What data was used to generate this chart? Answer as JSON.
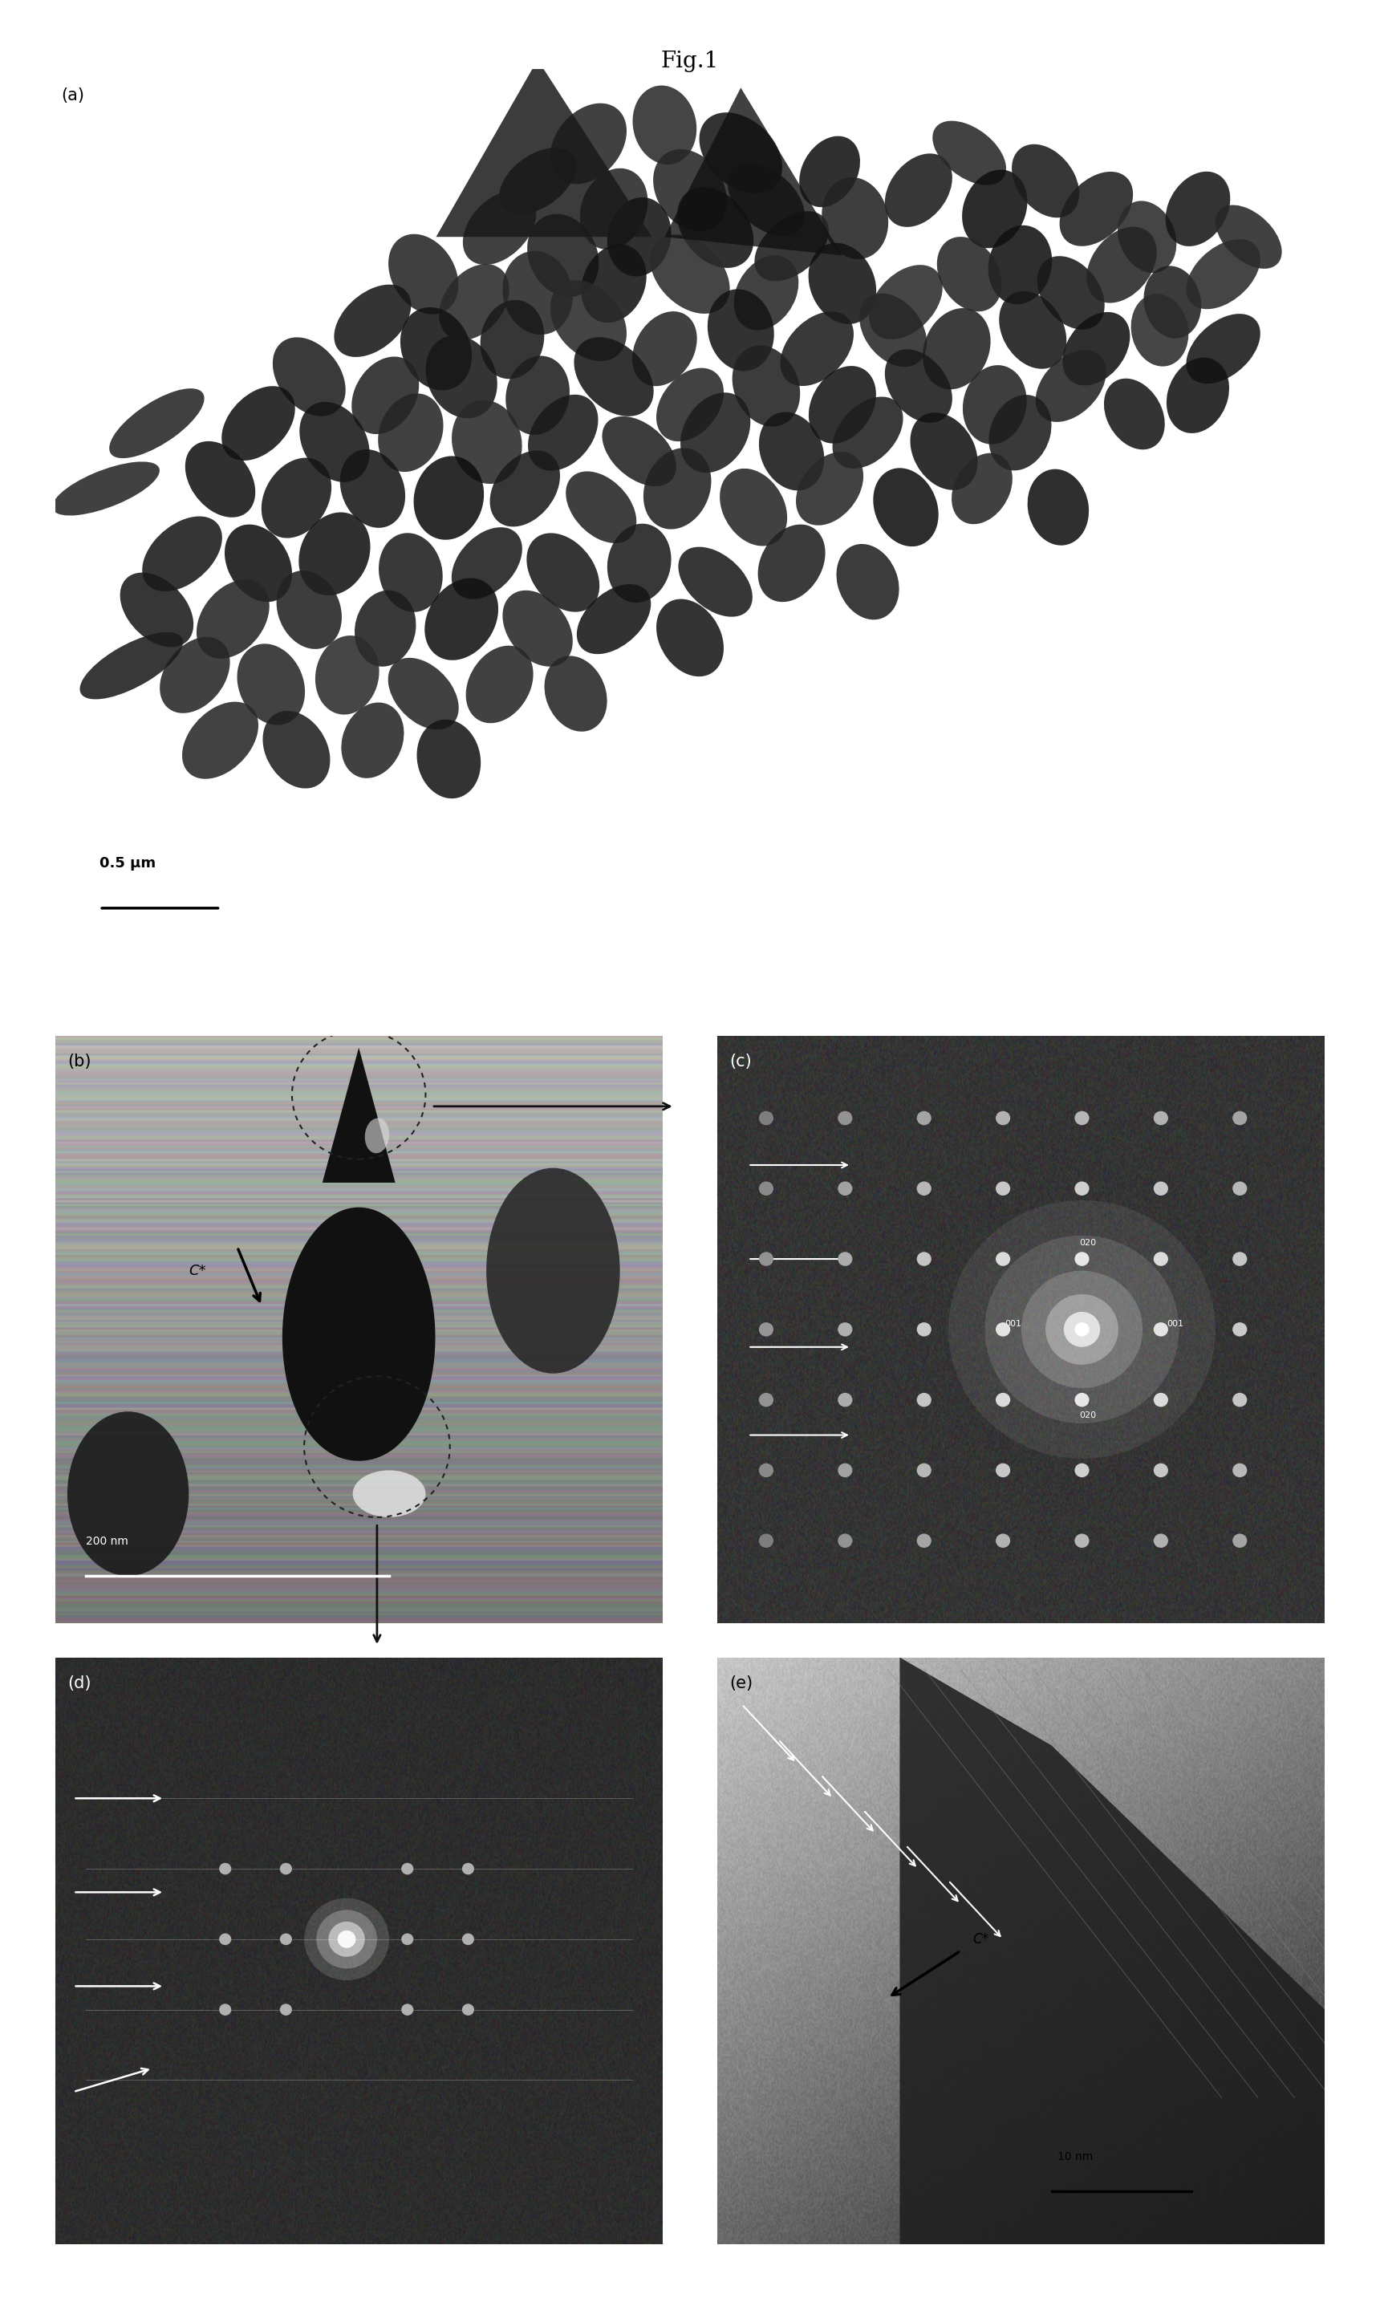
{
  "title": "Fig.1",
  "title_fontsize": 20,
  "background_color": "#ffffff",
  "panel_a_label": "(a)",
  "panel_b_label": "(b)",
  "panel_c_label": "(c)",
  "panel_d_label": "(d)",
  "panel_e_label": "(e)",
  "panel_label_fontsize": 15,
  "scale_bar_a_text": "0.5 μm",
  "scale_bar_b_text": "200 nm",
  "scale_bar_e_text": "10 nm",
  "panel_b_annotation": "C*",
  "panel_e_annotation": "C*"
}
